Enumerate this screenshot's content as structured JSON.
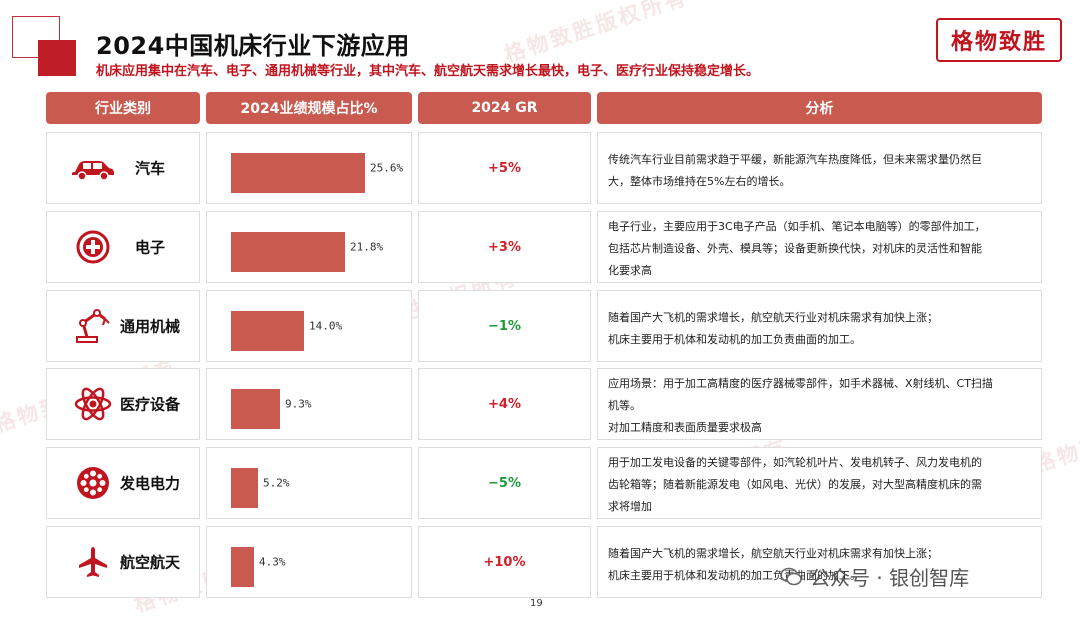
{
  "title": "2024中国机床行业下游应用",
  "subtitle": "机床应用集中在汽车、电子、通用机械等行业，其中汽车、航空航天需求增长最快，电子、医疗行业保持稳定增长。",
  "brand": "格物致胜",
  "watermark": "格物致胜版权所有",
  "headers": [
    "行业类别",
    "2024业绩规模占比%",
    "2024 GR",
    "分析"
  ],
  "rows": [
    {
      "category": "汽车",
      "icon": "car-icon",
      "share": 25.6,
      "share_label": "25.6%",
      "gr": "+5%",
      "gr_color": "#d0202a",
      "analysis": [
        "传统汽车行业目前需求趋于平缓，新能源汽车热度降低，但未来需求量仍然巨",
        "大，整体市场维持在5%左右的增长。"
      ]
    },
    {
      "category": "电子",
      "icon": "medical-cross-icon",
      "share": 21.8,
      "share_label": "21.8%",
      "gr": "+3%",
      "gr_color": "#d0202a",
      "analysis": [
        "电子行业，主要应用于3C电子产品（如手机、笔记本电脑等）的零部件加工，",
        "包括芯片制造设备、外壳、模具等；设备更新换代快，对机床的灵活性和智能",
        "化要求高"
      ]
    },
    {
      "category": "通用机械",
      "icon": "robot-arm-icon",
      "share": 14.0,
      "share_label": "14.0%",
      "gr": "−1%",
      "gr_color": "#1f9a3a",
      "analysis": [
        "随着国产大飞机的需求增长，航空航天行业对机床需求有加快上涨；",
        "机床主要用于机体和发动机的加工负责曲面的加工。"
      ]
    },
    {
      "category": "医疗设备",
      "icon": "atom-icon",
      "share": 9.3,
      "share_label": "9.3%",
      "gr": "+4%",
      "gr_color": "#d0202a",
      "analysis": [
        "应用场景：用于加工高精度的医疗器械零部件，如手术器械、X射线机、CT扫描",
        "机等。",
        "对加工精度和表面质量要求极高"
      ]
    },
    {
      "category": "发电电力",
      "icon": "turbine-icon",
      "share": 5.2,
      "share_label": "5.2%",
      "gr": "−5%",
      "gr_color": "#1f9a3a",
      "analysis": [
        "用于加工发电设备的关键零部件，如汽轮机叶片、发电机转子、风力发电机的",
        "齿轮箱等；随着新能源发电（如风电、光伏）的发展，对大型高精度机床的需",
        "求将增加"
      ]
    },
    {
      "category": "航空航天",
      "icon": "airplane-icon",
      "share": 4.3,
      "share_label": "4.3%",
      "gr": "+10%",
      "gr_color": "#d0202a",
      "analysis": [
        "随着国产大飞机的需求增长，航空航天行业对机床需求有加快上涨；",
        "机床主要用于机体和发动机的加工负责曲面的加工。"
      ]
    }
  ],
  "page_number": "19",
  "footer_wechat": "公众号 · 银创智库",
  "colors": {
    "accent": "#c85a50",
    "red_text": "#c0141e",
    "green_text": "#1f9a3a"
  }
}
